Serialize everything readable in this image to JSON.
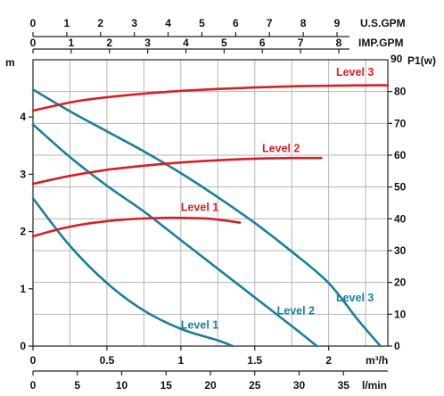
{
  "chart_data": {
    "type": "line",
    "axes": {
      "usgpm": {
        "label": "U.S.GPM",
        "ticks": [
          "0",
          "1",
          "2",
          "3",
          "4",
          "5",
          "6",
          "7",
          "8",
          "9"
        ],
        "range": [
          0,
          9
        ]
      },
      "impgpm": {
        "label": "IMP.GPM",
        "ticks": [
          "0",
          "1",
          "2",
          "3",
          "4",
          "5",
          "6",
          "7",
          "8"
        ],
        "range": [
          0,
          8
        ]
      },
      "head": {
        "label": "m",
        "ticks": [
          "0",
          "1",
          "2",
          "3",
          "4"
        ],
        "range": [
          0,
          5
        ]
      },
      "power": {
        "label_prefix": "90",
        "label": "P1(w)",
        "ticks": [
          "0",
          "10",
          "20",
          "30",
          "40",
          "50",
          "60",
          "70",
          "80"
        ],
        "range": [
          0,
          90
        ]
      },
      "flow_m3h": {
        "label": "m³/h",
        "ticks": [
          "0",
          "0.5",
          "1",
          "1.5",
          "2"
        ],
        "range": [
          0,
          2.4
        ]
      },
      "flow_lmin": {
        "label": "l/min",
        "ticks": [
          "0",
          "5",
          "10",
          "15",
          "20",
          "25",
          "30",
          "35"
        ],
        "range": [
          0,
          40
        ]
      }
    },
    "grid": true,
    "series": [
      {
        "name": "Level 1",
        "kind": "head",
        "color": "#1b7f99",
        "label_at": [
          1.0,
          0.3
        ],
        "points": [
          [
            0,
            2.58
          ],
          [
            0.25,
            1.75
          ],
          [
            0.5,
            1.1
          ],
          [
            0.75,
            0.62
          ],
          [
            1.0,
            0.3
          ],
          [
            1.25,
            0.1
          ],
          [
            1.35,
            0.0
          ]
        ]
      },
      {
        "name": "Level 2",
        "kind": "head",
        "color": "#1b7f99",
        "label_at": [
          1.65,
          0.55
        ],
        "points": [
          [
            0,
            3.87
          ],
          [
            0.25,
            3.3
          ],
          [
            0.5,
            2.8
          ],
          [
            0.75,
            2.35
          ],
          [
            1.0,
            1.85
          ],
          [
            1.25,
            1.35
          ],
          [
            1.5,
            0.85
          ],
          [
            1.75,
            0.35
          ],
          [
            1.92,
            0.0
          ]
        ]
      },
      {
        "name": "Level 3",
        "kind": "head",
        "color": "#1b7f99",
        "label_at": [
          2.05,
          0.78
        ],
        "points": [
          [
            0,
            4.48
          ],
          [
            0.25,
            4.1
          ],
          [
            0.5,
            3.75
          ],
          [
            0.75,
            3.4
          ],
          [
            1.0,
            3.02
          ],
          [
            1.25,
            2.6
          ],
          [
            1.5,
            2.15
          ],
          [
            1.75,
            1.65
          ],
          [
            2.0,
            1.1
          ],
          [
            2.2,
            0.45
          ],
          [
            2.35,
            0.0
          ]
        ]
      },
      {
        "name": "Level 1",
        "kind": "power",
        "color": "#d62027",
        "label_at": [
          1.0,
          42.5
        ],
        "points": [
          [
            0,
            34.5
          ],
          [
            0.2,
            37.0
          ],
          [
            0.4,
            38.7
          ],
          [
            0.6,
            39.7
          ],
          [
            0.8,
            40.2
          ],
          [
            1.0,
            40.3
          ],
          [
            1.2,
            40.0
          ],
          [
            1.4,
            38.8
          ]
        ]
      },
      {
        "name": "Level 2",
        "kind": "power",
        "color": "#d62027",
        "label_at": [
          1.55,
          61.0
        ],
        "points": [
          [
            0,
            51.0
          ],
          [
            0.25,
            53.5
          ],
          [
            0.5,
            55.4
          ],
          [
            0.75,
            56.7
          ],
          [
            1.0,
            57.7
          ],
          [
            1.25,
            58.4
          ],
          [
            1.5,
            58.9
          ],
          [
            1.75,
            59.1
          ],
          [
            1.95,
            59.1
          ]
        ]
      },
      {
        "name": "Level 3",
        "kind": "power",
        "color": "#d62027",
        "label_at": [
          2.05,
          85.0
        ],
        "points": [
          [
            0,
            74.0
          ],
          [
            0.3,
            77.0
          ],
          [
            0.6,
            78.7
          ],
          [
            0.9,
            79.9
          ],
          [
            1.2,
            80.7
          ],
          [
            1.5,
            81.3
          ],
          [
            1.8,
            81.7
          ],
          [
            2.1,
            81.9
          ],
          [
            2.4,
            82.0
          ]
        ]
      }
    ]
  }
}
